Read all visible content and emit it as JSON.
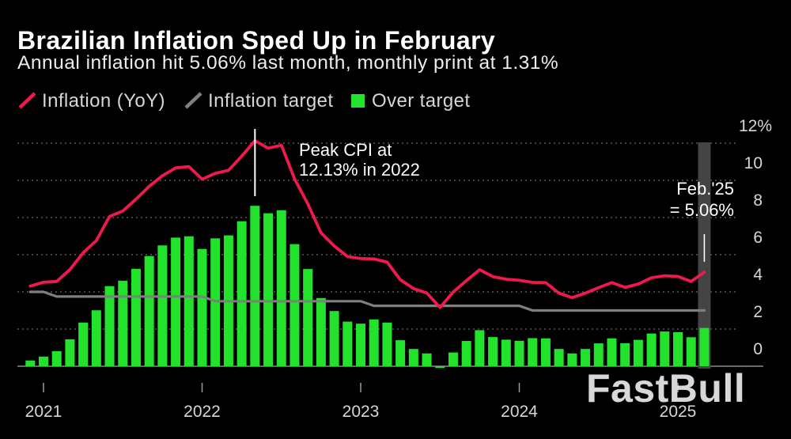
{
  "watermark": "FastBull",
  "chart_data": {
    "type": "line",
    "title": "Brazilian Inflation Sped Up in February",
    "subtitle": "Annual inflation hit 5.06% last month, monthly print at 1.31%",
    "legend_position": "top-left",
    "y_axis_side": "right",
    "grid": true,
    "ylim": [
      0,
      12
    ],
    "yticks": [
      0,
      2,
      4,
      6,
      8,
      10,
      12
    ],
    "ytick_labels": [
      "0",
      "2",
      "4",
      "6",
      "8",
      "10",
      "12%"
    ],
    "xticks": [
      "2021",
      "2022",
      "2023",
      "2024",
      "2025"
    ],
    "x": [
      "2020-11",
      "2020-12",
      "2021-01",
      "2021-02",
      "2021-03",
      "2021-04",
      "2021-05",
      "2021-06",
      "2021-07",
      "2021-08",
      "2021-09",
      "2021-10",
      "2021-11",
      "2021-12",
      "2022-01",
      "2022-02",
      "2022-03",
      "2022-04",
      "2022-05",
      "2022-06",
      "2022-07",
      "2022-08",
      "2022-09",
      "2022-10",
      "2022-11",
      "2022-12",
      "2023-01",
      "2023-02",
      "2023-03",
      "2023-04",
      "2023-05",
      "2023-06",
      "2023-07",
      "2023-08",
      "2023-09",
      "2023-10",
      "2023-11",
      "2023-12",
      "2024-01",
      "2024-02",
      "2024-03",
      "2024-04",
      "2024-05",
      "2024-06",
      "2024-07",
      "2024-08",
      "2024-09",
      "2024-10",
      "2024-11",
      "2024-12",
      "2025-01",
      "2025-02"
    ],
    "series": [
      {
        "name": "Inflation (YoY)",
        "type": "line",
        "color": "#f0194d",
        "values": [
          4.31,
          4.52,
          4.56,
          5.2,
          6.1,
          6.76,
          8.06,
          8.35,
          8.99,
          9.68,
          10.25,
          10.67,
          10.74,
          10.06,
          10.38,
          10.54,
          11.3,
          12.13,
          11.73,
          11.89,
          10.07,
          8.73,
          7.17,
          6.47,
          5.9,
          5.79,
          5.77,
          5.6,
          4.65,
          4.18,
          3.94,
          3.16,
          3.99,
          4.61,
          5.19,
          4.82,
          4.68,
          4.62,
          4.51,
          4.5,
          3.93,
          3.69,
          3.93,
          4.23,
          4.5,
          4.24,
          4.42,
          4.76,
          4.87,
          4.83,
          4.56,
          5.06
        ]
      },
      {
        "name": "Inflation target",
        "type": "line",
        "color": "#7f7f7f",
        "values": [
          4.0,
          4.0,
          3.75,
          3.75,
          3.75,
          3.75,
          3.75,
          3.75,
          3.75,
          3.75,
          3.75,
          3.75,
          3.75,
          3.75,
          3.5,
          3.5,
          3.5,
          3.5,
          3.5,
          3.5,
          3.5,
          3.5,
          3.5,
          3.5,
          3.5,
          3.5,
          3.25,
          3.25,
          3.25,
          3.25,
          3.25,
          3.25,
          3.25,
          3.25,
          3.25,
          3.25,
          3.25,
          3.25,
          3.0,
          3.0,
          3.0,
          3.0,
          3.0,
          3.0,
          3.0,
          3.0,
          3.0,
          3.0,
          3.0,
          3.0,
          3.0,
          3.0
        ]
      },
      {
        "name": "Over target",
        "type": "bar",
        "color": "#22e22c",
        "values": [
          0.31,
          0.52,
          0.81,
          1.45,
          2.35,
          3.01,
          4.31,
          4.6,
          5.24,
          5.93,
          6.5,
          6.92,
          6.99,
          6.31,
          6.88,
          7.04,
          7.8,
          8.63,
          8.23,
          8.39,
          6.57,
          5.23,
          3.67,
          2.97,
          2.4,
          2.29,
          2.52,
          2.35,
          1.4,
          0.93,
          0.69,
          -0.09,
          0.74,
          1.36,
          1.94,
          1.57,
          1.43,
          1.37,
          1.51,
          1.5,
          0.93,
          0.69,
          0.93,
          1.23,
          1.5,
          1.24,
          1.42,
          1.76,
          1.87,
          1.83,
          1.56,
          2.06
        ]
      }
    ],
    "highlight": "2025-02",
    "annotations": [
      {
        "x": "2022-04",
        "y": 12.13,
        "lines": [
          "Peak CPI at",
          "12.13% in 2022"
        ]
      },
      {
        "x": "2025-02",
        "y": 5.06,
        "lines": [
          "Feb.'25",
          "= 5.06%"
        ]
      }
    ]
  }
}
